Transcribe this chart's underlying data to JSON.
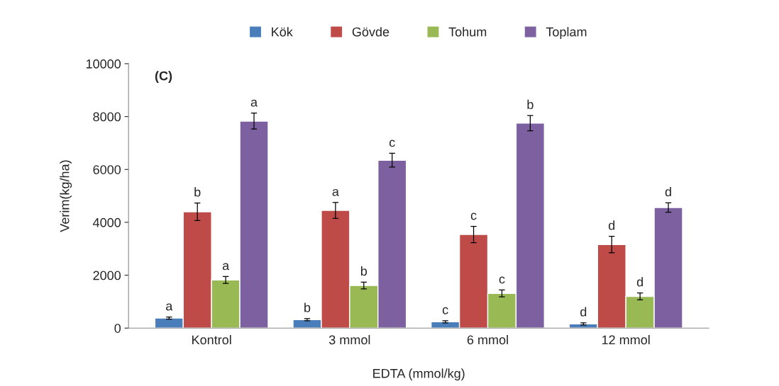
{
  "chart_data": {
    "type": "bar",
    "xlabel": "EDTA (mmol/kg)",
    "ylabel": "Verim(kg/ha)",
    "categories": [
      "Kontrol",
      "3 mmol",
      "6 mmol",
      "12 mmol"
    ],
    "series": [
      {
        "name": "Kök",
        "color": "#4a7ebb",
        "values": [
          380,
          320,
          240,
          160
        ],
        "errors": [
          40,
          40,
          40,
          40
        ],
        "value_labels": [
          "a",
          "b",
          "c",
          "d"
        ]
      },
      {
        "name": "Gövde",
        "color": "#be4b48",
        "values": [
          4400,
          4450,
          3540,
          3160
        ],
        "errors": [
          330,
          300,
          310,
          310
        ],
        "value_labels": [
          "b",
          "a",
          "c",
          "d"
        ]
      },
      {
        "name": "Tohum",
        "color": "#98b954",
        "values": [
          1820,
          1610,
          1310,
          1200
        ],
        "errors": [
          130,
          130,
          130,
          130
        ],
        "value_labels": [
          "a",
          "b",
          "c",
          "d"
        ]
      },
      {
        "name": "Toplam",
        "color": "#7d60a0",
        "values": [
          7830,
          6350,
          7750,
          4560
        ],
        "errors": [
          300,
          260,
          290,
          180
        ],
        "value_labels": [
          "a",
          "c",
          "b",
          "d"
        ]
      }
    ],
    "ylim": [
      0,
      10000
    ],
    "yticks": [
      0,
      2000,
      4000,
      6000,
      8000,
      10000
    ],
    "annotations": [
      "(C)"
    ],
    "legend": "top",
    "grid": false
  }
}
